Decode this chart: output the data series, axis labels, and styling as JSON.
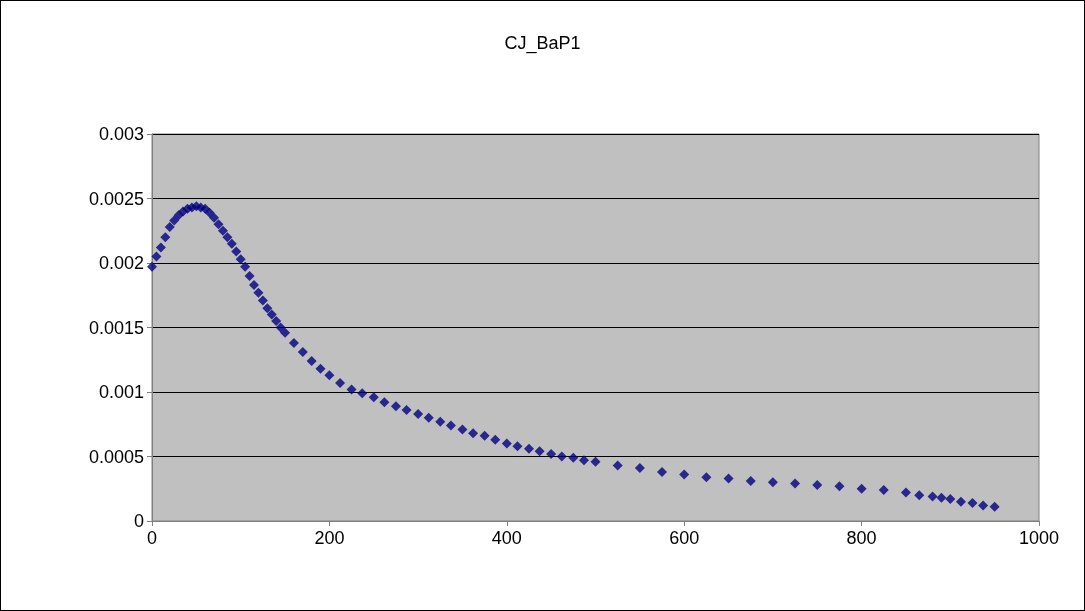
{
  "chart_data": {
    "type": "scatter",
    "title": "CJ_BaP1",
    "marker": "diamond",
    "grid": "y",
    "xlim": [
      0,
      1000
    ],
    "xticks": [
      0,
      200,
      400,
      600,
      800,
      1000
    ],
    "ylim": [
      0,
      0.003
    ],
    "yticks": [
      0,
      0.0005,
      0.001,
      0.0015,
      0.002,
      0.0025,
      0.003
    ],
    "series": [
      {
        "color": "#000080",
        "x": [
          0,
          5,
          10,
          15,
          20,
          25,
          30,
          35,
          40,
          45,
          50,
          55,
          60,
          65,
          70,
          75,
          80,
          85,
          90,
          95,
          100,
          105,
          110,
          115,
          120,
          125,
          130,
          135,
          140,
          145,
          150,
          160,
          170,
          180,
          190,
          200,
          212,
          225,
          237,
          250,
          262,
          275,
          287,
          300,
          312,
          325,
          337,
          350,
          362,
          375,
          387,
          400,
          412,
          425,
          437,
          450,
          462,
          475,
          487,
          500,
          525,
          550,
          575,
          600,
          625,
          650,
          675,
          700,
          725,
          750,
          775,
          800,
          825,
          850,
          865,
          880,
          890,
          900,
          912,
          925,
          937,
          950
        ],
        "values": [
          0.00197,
          0.00205,
          0.00212,
          0.0022,
          0.00228,
          0.00233,
          0.00237,
          0.0024,
          0.00242,
          0.00243,
          0.00244,
          0.00243,
          0.00242,
          0.00239,
          0.00235,
          0.0023,
          0.00225,
          0.0022,
          0.00215,
          0.00209,
          0.00203,
          0.00197,
          0.0019,
          0.00183,
          0.00177,
          0.00171,
          0.00165,
          0.0016,
          0.00155,
          0.0015,
          0.00146,
          0.00138,
          0.00131,
          0.00124,
          0.00118,
          0.00113,
          0.00107,
          0.00102,
          0.00099,
          0.00096,
          0.00092,
          0.00089,
          0.00086,
          0.00083,
          0.0008,
          0.00077,
          0.00074,
          0.00071,
          0.00068,
          0.00066,
          0.00063,
          0.0006,
          0.00058,
          0.00056,
          0.00054,
          0.00052,
          0.0005,
          0.00049,
          0.00047,
          0.00046,
          0.00043,
          0.00041,
          0.00038,
          0.00036,
          0.00034,
          0.00033,
          0.00031,
          0.0003,
          0.00029,
          0.00028,
          0.00027,
          0.00025,
          0.00024,
          0.00022,
          0.0002,
          0.00019,
          0.00018,
          0.00017,
          0.00015,
          0.00014,
          0.00012,
          0.00011
        ]
      }
    ]
  }
}
